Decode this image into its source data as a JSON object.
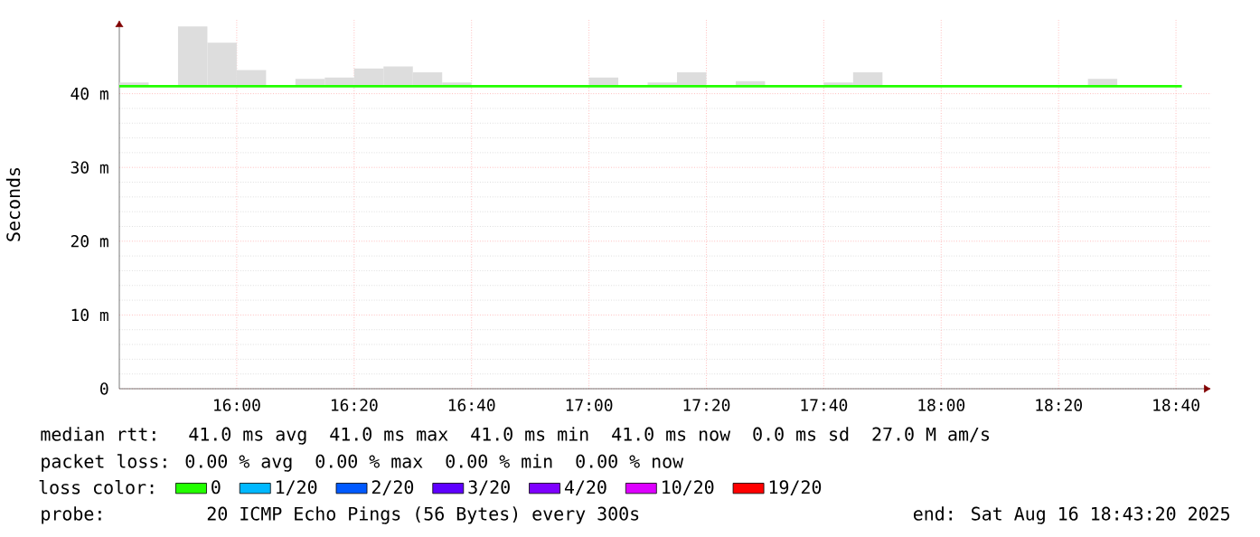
{
  "chart_data": {
    "type": "bar",
    "ylabel": "Seconds",
    "legend_title": "loss color:",
    "annotations": [
      "median rtt:  41.0 ms avg  41.0 ms max  41.0 ms min  41.0 ms now  0.0 ms sd  27.0 M am/s",
      "packet loss: 0.00 % avg  0.00 % max  0.00 % min  0.00 % now",
      "probe:       20 ICMP Echo Pings (56 Bytes) every 300s",
      "end: Sat Aug 16 18:43:20 2025"
    ],
    "xlim": [
      "2025-08-16T15:40",
      "2025-08-16T18:46"
    ],
    "xticks": [
      {
        "value": "2025-08-16T16:00",
        "label": "16:00"
      },
      {
        "value": "2025-08-16T16:20",
        "label": "16:20"
      },
      {
        "value": "2025-08-16T16:40",
        "label": "16:40"
      },
      {
        "value": "2025-08-16T17:00",
        "label": "17:00"
      },
      {
        "value": "2025-08-16T17:20",
        "label": "17:20"
      },
      {
        "value": "2025-08-16T17:40",
        "label": "17:40"
      },
      {
        "value": "2025-08-16T18:00",
        "label": "18:00"
      },
      {
        "value": "2025-08-16T18:20",
        "label": "18:20"
      },
      {
        "value": "2025-08-16T18:40",
        "label": "18:40"
      }
    ],
    "ylim": [
      0,
      50
    ],
    "yticks": [
      0,
      {
        "value": 10,
        "label": "10 m"
      },
      {
        "value": 20,
        "label": "20 m"
      },
      {
        "value": 30,
        "label": "30 m"
      },
      {
        "value": 40,
        "label": "40 m"
      }
    ],
    "grid": true,
    "legend": "bottom",
    "series": [
      {
        "color": "#dddddd",
        "x": [
          "2025-08-16T15:42:30",
          "2025-08-16T15:52:30",
          "2025-08-16T15:57:30",
          "2025-08-16T16:02:30",
          "2025-08-16T16:12:30",
          "2025-08-16T16:17:30",
          "2025-08-16T16:22:30",
          "2025-08-16T16:27:30",
          "2025-08-16T16:32:30",
          "2025-08-16T16:37:30",
          "2025-08-16T17:02:30",
          "2025-08-16T17:12:30",
          "2025-08-16T17:17:30",
          "2025-08-16T17:27:30",
          "2025-08-16T17:42:30",
          "2025-08-16T17:47:30",
          "2025-08-16T18:27:30"
        ],
        "base": [
          41,
          41,
          41,
          41,
          41,
          41,
          41,
          41,
          41,
          41,
          41,
          41,
          41,
          41,
          41,
          41,
          41
        ],
        "values": [
          0.5,
          8.1,
          5.9,
          2.2,
          1.0,
          1.2,
          2.4,
          2.7,
          1.9,
          0.5,
          1.2,
          0.5,
          1.9,
          0.7,
          0.5,
          1.9,
          1.0
        ]
      },
      {
        "type": "line",
        "name": "0",
        "color": "#22ff00",
        "x": [
          "2025-08-16T15:40",
          "2025-08-16T18:41"
        ],
        "values": [
          41,
          41
        ]
      },
      {
        "type": "line",
        "name": "1/20",
        "color": "#00b8ff"
      },
      {
        "type": "line",
        "name": "2/20",
        "color": "#0059ff"
      },
      {
        "type": "line",
        "name": "3/20",
        "color": "#5e00ff"
      },
      {
        "type": "line",
        "name": "4/20",
        "color": "#7e00ff"
      },
      {
        "type": "line",
        "name": "10/20",
        "color": "#dd00ff"
      },
      {
        "type": "line",
        "name": "19/20",
        "color": "#ff0000"
      }
    ]
  }
}
